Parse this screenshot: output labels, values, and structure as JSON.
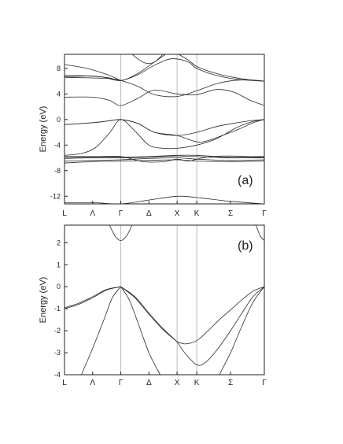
{
  "chart_data": [
    {
      "type": "line",
      "panel_label": "(a)",
      "ylabel": "Energy (eV)",
      "ylim": [
        -13.2,
        10.2
      ],
      "yticks": [
        8,
        4,
        0,
        -4,
        -8,
        -12
      ],
      "kpoints": [
        "L",
        "Λ",
        "Γ",
        "Δ",
        "X",
        "K",
        "Σ",
        "Γ"
      ],
      "kpoint_pos": [
        0,
        0.5,
        1,
        1.5,
        2,
        2.35,
        2.95,
        3.55
      ],
      "symmetry_lines": [
        1,
        2,
        2.35
      ],
      "line_color": "#2a2a2a",
      "guide_color": "#bbbbbb",
      "series": [
        {
          "x": [
            0,
            0.5,
            1,
            1.5,
            2,
            2.35,
            2.95,
            3.55
          ],
          "y": [
            -13.0,
            -13.0,
            -13.2,
            -12.6,
            -12.0,
            -12.2,
            -12.8,
            -13.2
          ]
        },
        {
          "x": [
            0,
            0.5,
            1,
            1.5,
            2,
            2.35,
            2.95,
            3.55
          ],
          "y": [
            -6.5,
            -6.4,
            -6.3,
            -6.1,
            -6.0,
            -6.2,
            -6.4,
            -6.3
          ]
        },
        {
          "x": [
            0,
            0.5,
            1,
            1.5,
            2,
            2.35,
            2.95,
            3.55
          ],
          "y": [
            -6.1,
            -6.0,
            -6.0,
            -5.9,
            -5.7,
            -5.8,
            -6.0,
            -6.0
          ]
        },
        {
          "x": [
            0,
            0.5,
            1,
            1.5,
            2,
            2.35,
            2.95,
            3.55
          ],
          "y": [
            -5.9,
            -5.9,
            -5.9,
            -5.8,
            -5.6,
            -5.6,
            -5.9,
            -5.9
          ]
        },
        {
          "x": [
            0,
            0.5,
            1,
            1.5,
            2,
            2.35,
            2.95,
            3.55
          ],
          "y": [
            -6.8,
            -6.6,
            -6.5,
            -6.4,
            -6.3,
            -6.5,
            -6.6,
            -6.5
          ]
        },
        {
          "x": [
            0,
            0.3,
            0.6,
            1,
            1.4,
            1.75,
            2,
            2.2,
            2.35,
            2.6,
            2.95,
            3.3,
            3.55
          ],
          "y": [
            -5.8,
            -5.8,
            -5.8,
            -5.8,
            -6.6,
            -6.6,
            -6.2,
            -6.5,
            -6.2,
            -5.8,
            -5.7,
            -5.8,
            -5.8
          ]
        },
        {
          "x": [
            0,
            0.5,
            0.8,
            1,
            1.3,
            1.6,
            2,
            2.35,
            2.7,
            3.0,
            3.3,
            3.55
          ],
          "y": [
            -0.8,
            -0.5,
            -0.2,
            0,
            -0.6,
            -2.0,
            -2.5,
            -2.0,
            -1.1,
            -0.6,
            -0.2,
            0
          ]
        },
        {
          "x": [
            0,
            0.5,
            0.8,
            1,
            1.3,
            1.6,
            2,
            2.35,
            2.55,
            2.8,
            3.1,
            3.35,
            3.55
          ],
          "y": [
            -0.8,
            -0.5,
            -0.2,
            0,
            -0.6,
            -2.0,
            -2.5,
            -3.5,
            -3.3,
            -2.5,
            -1.5,
            -0.5,
            0
          ]
        },
        {
          "x": [
            0,
            0.3,
            0.55,
            0.8,
            1,
            1.25,
            1.5,
            1.75,
            2,
            2.35,
            2.7,
            3.05,
            3.35,
            3.55
          ],
          "y": [
            -5.6,
            -5.3,
            -4.4,
            -2.1,
            0,
            -1.8,
            -4.0,
            -4.5,
            -4.5,
            -4.0,
            -3.0,
            -1.3,
            -0.3,
            0
          ]
        },
        {
          "x": [
            0,
            0.5,
            0.8,
            1,
            1.3,
            1.6,
            2,
            2.35,
            2.7,
            3.0,
            3.3,
            3.55
          ],
          "y": [
            3.5,
            3.5,
            3.0,
            2.2,
            3.3,
            4.6,
            4.0,
            3.9,
            4.7,
            4.3,
            3.0,
            2.2
          ]
        },
        {
          "x": [
            0,
            0.5,
            0.8,
            1,
            1.3,
            1.6,
            2,
            2.35,
            2.7,
            3.0,
            3.3,
            3.55
          ],
          "y": [
            6.6,
            6.5,
            6.4,
            6.1,
            5.2,
            3.9,
            3.6,
            4.5,
            5.6,
            6.1,
            6.2,
            6.0
          ]
        },
        {
          "x": [
            0,
            0.5,
            0.8,
            1,
            1.3,
            1.6,
            1.9,
            2.2,
            2.35,
            2.7,
            3.05,
            3.35,
            3.55
          ],
          "y": [
            6.9,
            6.8,
            6.5,
            6.1,
            7.0,
            8.5,
            9.5,
            9.0,
            8.0,
            6.9,
            6.3,
            6.1,
            6.0
          ]
        },
        {
          "x": [
            0,
            0.4,
            0.7,
            1,
            1.3,
            1.6,
            1.9,
            2.2,
            2.35,
            2.7,
            3.0,
            3.3,
            3.55
          ],
          "y": [
            6.7,
            6.8,
            6.6,
            6.1,
            7.2,
            9.0,
            10.5,
            9.3,
            8.3,
            7.2,
            6.6,
            6.2,
            6.0
          ]
        },
        {
          "x": [
            0,
            0.4,
            0.7,
            0.85,
            1
          ],
          "y": [
            8.6,
            8.0,
            7.2,
            6.7,
            6.1
          ]
        },
        {
          "x": [
            1.2,
            1.3,
            1.45,
            1.6,
            1.75
          ],
          "y": [
            10.2,
            9.5,
            8.8,
            9.0,
            10.2
          ]
        }
      ]
    },
    {
      "type": "line",
      "panel_label": "(b)",
      "ylabel": "Energy (eV)",
      "ylim": [
        -4,
        2.8
      ],
      "yticks": [
        2,
        1,
        0,
        -1,
        -2,
        -3,
        -4
      ],
      "kpoints": [
        "L",
        "Λ",
        "Γ",
        "Δ",
        "X",
        "K",
        "Σ",
        "Γ"
      ],
      "kpoint_pos": [
        0,
        0.5,
        1,
        1.5,
        2,
        2.35,
        2.95,
        3.55
      ],
      "symmetry_lines": [
        1,
        2,
        2.35
      ],
      "line_color": "#2a2a2a",
      "guide_color": "#bbbbbb",
      "series": [
        {
          "x": [
            0,
            0.25,
            0.5,
            0.75,
            1
          ],
          "y": [
            -1.0,
            -0.8,
            -0.5,
            -0.15,
            0
          ]
        },
        {
          "x": [
            0,
            0.25,
            0.5,
            0.75,
            1
          ],
          "y": [
            -0.95,
            -0.75,
            -0.45,
            -0.12,
            0
          ]
        },
        {
          "x": [
            0.3,
            0.5,
            0.7,
            0.85,
            1
          ],
          "y": [
            -4.0,
            -2.8,
            -1.5,
            -0.5,
            0
          ]
        },
        {
          "x": [
            1,
            1.15,
            1.3,
            1.5,
            1.7
          ],
          "y": [
            0,
            -0.6,
            -1.6,
            -3.0,
            -4.0
          ]
        },
        {
          "x": [
            1,
            1.25,
            1.5,
            1.75,
            2
          ],
          "y": [
            0,
            -0.45,
            -1.2,
            -1.9,
            -2.5
          ]
        },
        {
          "x": [
            1,
            1.25,
            1.5,
            1.75,
            2
          ],
          "y": [
            0,
            -0.5,
            -1.25,
            -1.95,
            -2.5
          ]
        },
        {
          "x": [
            2,
            2.15,
            2.35,
            2.55,
            2.75,
            2.95,
            3.15,
            3.35,
            3.55
          ],
          "y": [
            -2.5,
            -2.6,
            -2.45,
            -2.0,
            -1.5,
            -1.05,
            -0.6,
            -0.2,
            0
          ]
        },
        {
          "x": [
            2,
            2.15,
            2.35,
            2.5,
            2.7,
            2.95,
            3.15,
            3.35,
            3.55
          ],
          "y": [
            -2.5,
            -3.05,
            -3.55,
            -3.45,
            -2.9,
            -2.0,
            -1.2,
            -0.45,
            0
          ]
        },
        {
          "x": [
            2.75,
            2.95,
            3.15,
            3.35,
            3.55
          ],
          "y": [
            -4.0,
            -3.0,
            -1.8,
            -0.7,
            0
          ]
        },
        {
          "x": [
            0.8,
            0.9,
            1,
            1.1,
            1.2
          ],
          "y": [
            2.8,
            2.3,
            2.1,
            2.3,
            2.8
          ]
        },
        {
          "x": [
            3.4,
            3.48,
            3.55
          ],
          "y": [
            2.8,
            2.3,
            2.1
          ]
        }
      ]
    }
  ]
}
